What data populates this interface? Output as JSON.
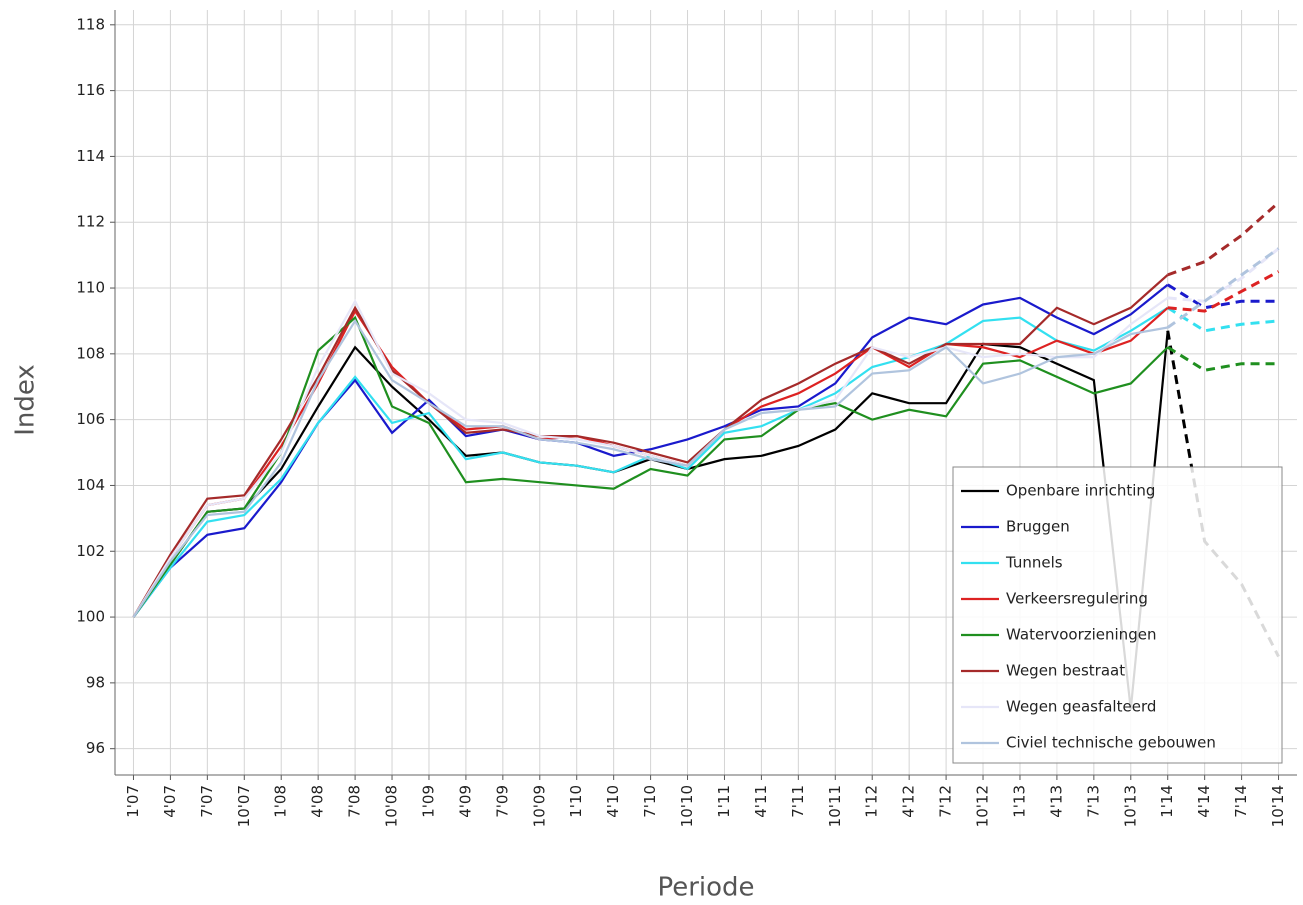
{
  "chart_data": {
    "type": "line",
    "x_label": "Periode",
    "y_label": "Index",
    "categories": [
      "1'07",
      "4'07",
      "7'07",
      "10'07",
      "1'08",
      "4'08",
      "7'08",
      "10'08",
      "1'09",
      "4'09",
      "7'09",
      "10'09",
      "1'10",
      "4'10",
      "7'10",
      "10'10",
      "1'11",
      "4'11",
      "7'11",
      "10'11",
      "1'12",
      "4'12",
      "7'12",
      "10'12",
      "1'13",
      "4'13",
      "7'13",
      "10'13",
      "1'14",
      "4'14",
      "7'14",
      "10'14"
    ],
    "forecast_from_index": 28,
    "ylim": [
      95.2,
      118.45
    ],
    "yticks": [
      96,
      98,
      100,
      102,
      104,
      106,
      108,
      110,
      112,
      114,
      116,
      118
    ],
    "grid": true,
    "legend": "lower-right",
    "series": [
      {
        "name": "Openbare inrichting",
        "color": "#000000",
        "values": [
          100,
          101.6,
          103.2,
          103.3,
          104.5,
          106.4,
          108.2,
          107.0,
          106.0,
          104.9,
          105.0,
          104.7,
          104.6,
          104.4,
          104.8,
          104.5,
          104.8,
          104.9,
          105.2,
          105.7,
          106.8,
          106.5,
          106.5,
          108.3,
          108.2,
          107.7,
          107.2,
          97.2,
          108.7,
          102.3,
          101.0,
          98.8
        ]
      },
      {
        "name": "Bruggen",
        "color": "#1a1acc",
        "values": [
          100,
          101.5,
          102.5,
          102.7,
          104.1,
          105.9,
          107.2,
          105.6,
          106.6,
          105.5,
          105.7,
          105.4,
          105.3,
          104.9,
          105.1,
          105.4,
          105.8,
          106.3,
          106.4,
          107.1,
          108.5,
          109.1,
          108.9,
          109.5,
          109.7,
          109.1,
          108.6,
          109.2,
          110.1,
          109.4,
          109.6,
          109.6
        ]
      },
      {
        "name": "Tunnels",
        "color": "#33e0f0",
        "values": [
          100,
          101.5,
          102.9,
          103.1,
          104.2,
          105.9,
          107.3,
          105.9,
          106.2,
          104.8,
          105.0,
          104.7,
          104.6,
          104.4,
          104.9,
          104.5,
          105.6,
          105.8,
          106.3,
          106.8,
          107.6,
          107.9,
          108.3,
          109.0,
          109.1,
          108.4,
          108.1,
          108.7,
          109.4,
          108.7,
          108.9,
          109.0
        ]
      },
      {
        "name": "Verkeersregulering",
        "color": "#dd2222",
        "values": [
          100,
          101.8,
          103.4,
          103.6,
          105.2,
          107.1,
          109.3,
          107.6,
          106.5,
          105.7,
          105.8,
          105.4,
          105.5,
          105.2,
          104.9,
          104.6,
          105.7,
          106.4,
          106.8,
          107.4,
          108.2,
          107.6,
          108.3,
          108.2,
          107.9,
          108.4,
          108.0,
          108.4,
          109.4,
          109.3,
          109.9,
          110.5
        ]
      },
      {
        "name": "Watervoorzieningen",
        "color": "#1f8f1f",
        "values": [
          100,
          101.6,
          103.2,
          103.3,
          105.0,
          108.1,
          109.1,
          106.4,
          105.9,
          104.1,
          104.2,
          104.1,
          104.0,
          103.9,
          104.5,
          104.3,
          105.4,
          105.5,
          106.3,
          106.5,
          106.0,
          106.3,
          106.1,
          107.7,
          107.8,
          107.3,
          106.8,
          107.1,
          108.2,
          107.5,
          107.7,
          107.7
        ]
      },
      {
        "name": "Wegen bestraat",
        "color": "#a52a2a",
        "values": [
          100,
          101.9,
          103.6,
          103.7,
          105.4,
          107.3,
          109.4,
          107.5,
          106.5,
          105.6,
          105.7,
          105.5,
          105.5,
          105.3,
          105.0,
          104.7,
          105.7,
          106.6,
          107.1,
          107.7,
          108.2,
          107.7,
          108.3,
          108.3,
          108.3,
          109.4,
          108.9,
          109.4,
          110.4,
          110.8,
          111.6,
          112.6
        ]
      },
      {
        "name": "Wegen geasfalteerd",
        "color": "#e6e6f8",
        "values": [
          100,
          101.8,
          103.4,
          103.6,
          105.0,
          107.6,
          109.6,
          107.4,
          106.8,
          106.0,
          105.9,
          105.5,
          105.4,
          105.2,
          104.9,
          104.6,
          105.7,
          106.2,
          106.3,
          106.6,
          108.2,
          107.9,
          108.2,
          107.9,
          108.0,
          107.9,
          107.9,
          108.9,
          109.7,
          109.6,
          110.3,
          111.2
        ]
      },
      {
        "name": "Civiel technische gebouwen",
        "color": "#b0c4de",
        "values": [
          100,
          101.7,
          103.1,
          103.2,
          104.7,
          107.2,
          109.0,
          107.2,
          106.5,
          105.8,
          105.8,
          105.4,
          105.3,
          105.1,
          104.8,
          104.6,
          105.7,
          106.2,
          106.3,
          106.4,
          107.4,
          107.5,
          108.2,
          107.1,
          107.4,
          107.9,
          108.0,
          108.6,
          108.8,
          109.6,
          110.4,
          111.2
        ]
      }
    ]
  }
}
